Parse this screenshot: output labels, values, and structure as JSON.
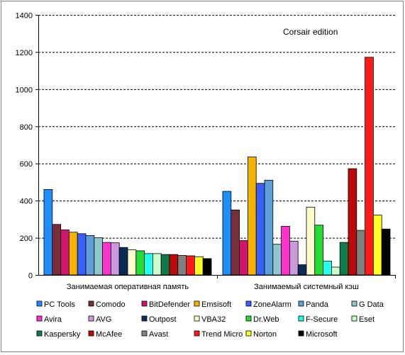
{
  "chart_data": {
    "type": "bar",
    "annotation": "Corsair edition",
    "title": "",
    "xlabel": "",
    "ylabel": "",
    "ylim": [
      0,
      1400
    ],
    "yticks": [
      0,
      200,
      400,
      600,
      800,
      1000,
      1200,
      1400
    ],
    "grid": "horizontal-dashed",
    "legend_position": "bottom",
    "categories": [
      "Занимаемая оперативная память",
      "Занимаемый системный кэш"
    ],
    "series": [
      {
        "name": "PC Tools",
        "color": "#1f8fff",
        "values": [
          460,
          450
        ]
      },
      {
        "name": "Comodo",
        "color": "#7b2d3a",
        "values": [
          272,
          350
        ]
      },
      {
        "name": "BitDefender",
        "color": "#d0156e",
        "values": [
          243,
          185
        ]
      },
      {
        "name": "Emsisoft",
        "color": "#f5b400",
        "values": [
          230,
          635
        ]
      },
      {
        "name": "ZoneAlarm",
        "color": "#3a5fff",
        "values": [
          222,
          493
        ]
      },
      {
        "name": "Panda",
        "color": "#5f9fd8",
        "values": [
          212,
          510
        ]
      },
      {
        "name": "G Data",
        "color": "#8fc5cc",
        "values": [
          200,
          165
        ]
      },
      {
        "name": "Avira",
        "color": "#ff33cc",
        "values": [
          175,
          262
        ]
      },
      {
        "name": "AVG",
        "color": "#cc99dd",
        "values": [
          173,
          182
        ]
      },
      {
        "name": "Outpost",
        "color": "#0a2a5a",
        "values": [
          148,
          55
        ]
      },
      {
        "name": "VBA32",
        "color": "#ffffcc",
        "values": [
          135,
          365
        ]
      },
      {
        "name": "Dr.Web",
        "color": "#22dd33",
        "values": [
          130,
          268
        ]
      },
      {
        "name": "F-Secure",
        "color": "#22ffee",
        "values": [
          115,
          75
        ]
      },
      {
        "name": "Eset",
        "color": "#ccffcc",
        "values": [
          115,
          42
        ]
      },
      {
        "name": "Kaspersky",
        "color": "#0f7a4a",
        "values": [
          110,
          175
        ]
      },
      {
        "name": "McAfee",
        "color": "#bb0a0a",
        "values": [
          110,
          572
        ]
      },
      {
        "name": "Avast",
        "color": "#808080",
        "values": [
          105,
          240
        ]
      },
      {
        "name": "Trend Micro",
        "color": "#ff1a1a",
        "values": [
          103,
          1172
        ]
      },
      {
        "name": "Norton",
        "color": "#ffff22",
        "values": [
          98,
          322
        ]
      },
      {
        "name": "Microsoft",
        "color": "#000000",
        "values": [
          88,
          247
        ]
      }
    ]
  }
}
